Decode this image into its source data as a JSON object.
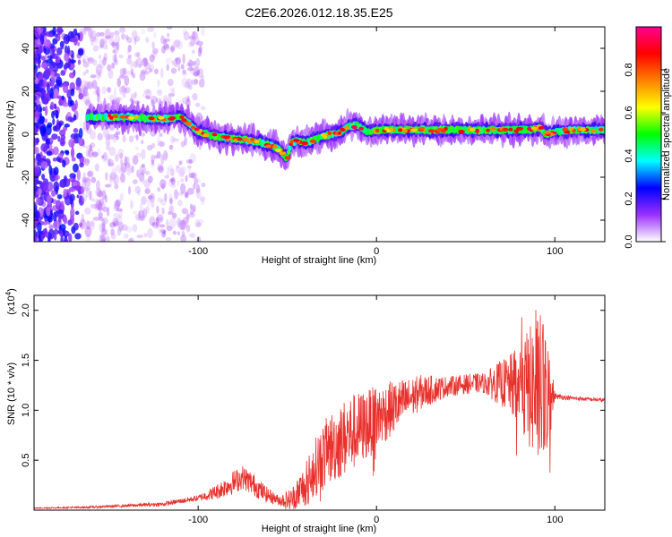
{
  "title": "C2E6.2026.012.18.35.E25",
  "chart_data": [
    {
      "type": "heatmap",
      "name": "spectrogram",
      "xlabel": "Height of straight line (km)",
      "ylabel": "Frequency (Hz)",
      "xlim": [
        -192,
        128
      ],
      "ylim": [
        -50,
        50
      ],
      "x_ticks": [
        -100,
        0,
        100
      ],
      "x_tick_labels": [
        "-100",
        "0",
        "100"
      ],
      "y_ticks": [
        -40,
        -20,
        0,
        20,
        40
      ],
      "y_tick_labels": [
        "-40",
        "-20",
        "0",
        "20",
        "40"
      ],
      "colorbar": {
        "label": "Normalized spectral amplitude",
        "range": [
          0,
          1
        ],
        "ticks": [
          0.0,
          0.2,
          0.4,
          0.6,
          0.8
        ],
        "tick_labels": [
          "0.0",
          "0.2",
          "0.4",
          "0.6",
          "0.8"
        ],
        "colors": [
          "#ffffff",
          "#9b30ff",
          "#0000ff",
          "#00ffff",
          "#00ff00",
          "#ffff00",
          "#ff8000",
          "#ff0000",
          "#ff0090"
        ]
      },
      "ridge": {
        "x": [
          -160,
          -140,
          -120,
          -110,
          -105,
          -100,
          -90,
          -80,
          -70,
          -60,
          -55,
          -50,
          -48,
          -45,
          -40,
          -30,
          -20,
          -15,
          -10,
          -5,
          0,
          10,
          30,
          50,
          70,
          85,
          92,
          95,
          100,
          110,
          128
        ],
        "y": [
          8,
          8,
          7,
          8,
          5,
          1,
          -1,
          -2,
          -3,
          -5,
          -7,
          -11,
          -4,
          -3,
          -4,
          -1,
          1,
          4,
          4,
          1,
          2,
          2,
          2,
          2,
          2,
          2,
          3,
          0,
          1,
          2,
          2
        ]
      }
    },
    {
      "type": "line",
      "name": "snr",
      "xlabel": "Height of straight line (km)",
      "ylabel": "SNR (10 * v/v)",
      "y_multiplier": "(x10^4)",
      "multiplier_base": "(x10",
      "multiplier_exp": "4",
      "multiplier_close": ")",
      "xlim": [
        -192,
        128
      ],
      "ylim": [
        0,
        2.15
      ],
      "x_ticks": [
        -100,
        0,
        100
      ],
      "x_tick_labels": [
        "-100",
        "0",
        "100"
      ],
      "y_ticks": [
        0.5,
        1.0,
        1.5,
        2.0
      ],
      "y_tick_labels": [
        "0.5",
        "1.0",
        "1.5",
        "2.0"
      ],
      "series_color": "#e8302c",
      "envelope": {
        "x": [
          -192,
          -160,
          -120,
          -100,
          -90,
          -80,
          -75,
          -70,
          -62,
          -55,
          -48,
          -40,
          -32,
          -25,
          -15,
          -5,
          5,
          15,
          25,
          40,
          55,
          70,
          80,
          90,
          95,
          100,
          110,
          128
        ],
        "y": [
          0.02,
          0.03,
          0.06,
          0.12,
          0.18,
          0.28,
          0.33,
          0.27,
          0.16,
          0.1,
          0.1,
          0.25,
          0.5,
          0.63,
          0.76,
          0.86,
          0.98,
          1.08,
          1.18,
          1.24,
          1.27,
          1.27,
          1.24,
          1.2,
          1.15,
          1.14,
          1.12,
          1.1
        ]
      },
      "noise": {
        "x": [
          -192,
          -160,
          -120,
          -100,
          -80,
          -70,
          -55,
          -45,
          -30,
          -15,
          -5,
          5,
          20,
          40,
          60,
          75,
          85,
          92,
          97,
          100,
          110,
          128
        ],
        "y": [
          0.005,
          0.01,
          0.02,
          0.03,
          0.12,
          0.12,
          0.05,
          0.15,
          0.35,
          0.4,
          0.35,
          0.3,
          0.2,
          0.1,
          0.1,
          0.3,
          0.6,
          0.8,
          0.5,
          0.03,
          0.02,
          0.02
        ]
      }
    }
  ]
}
